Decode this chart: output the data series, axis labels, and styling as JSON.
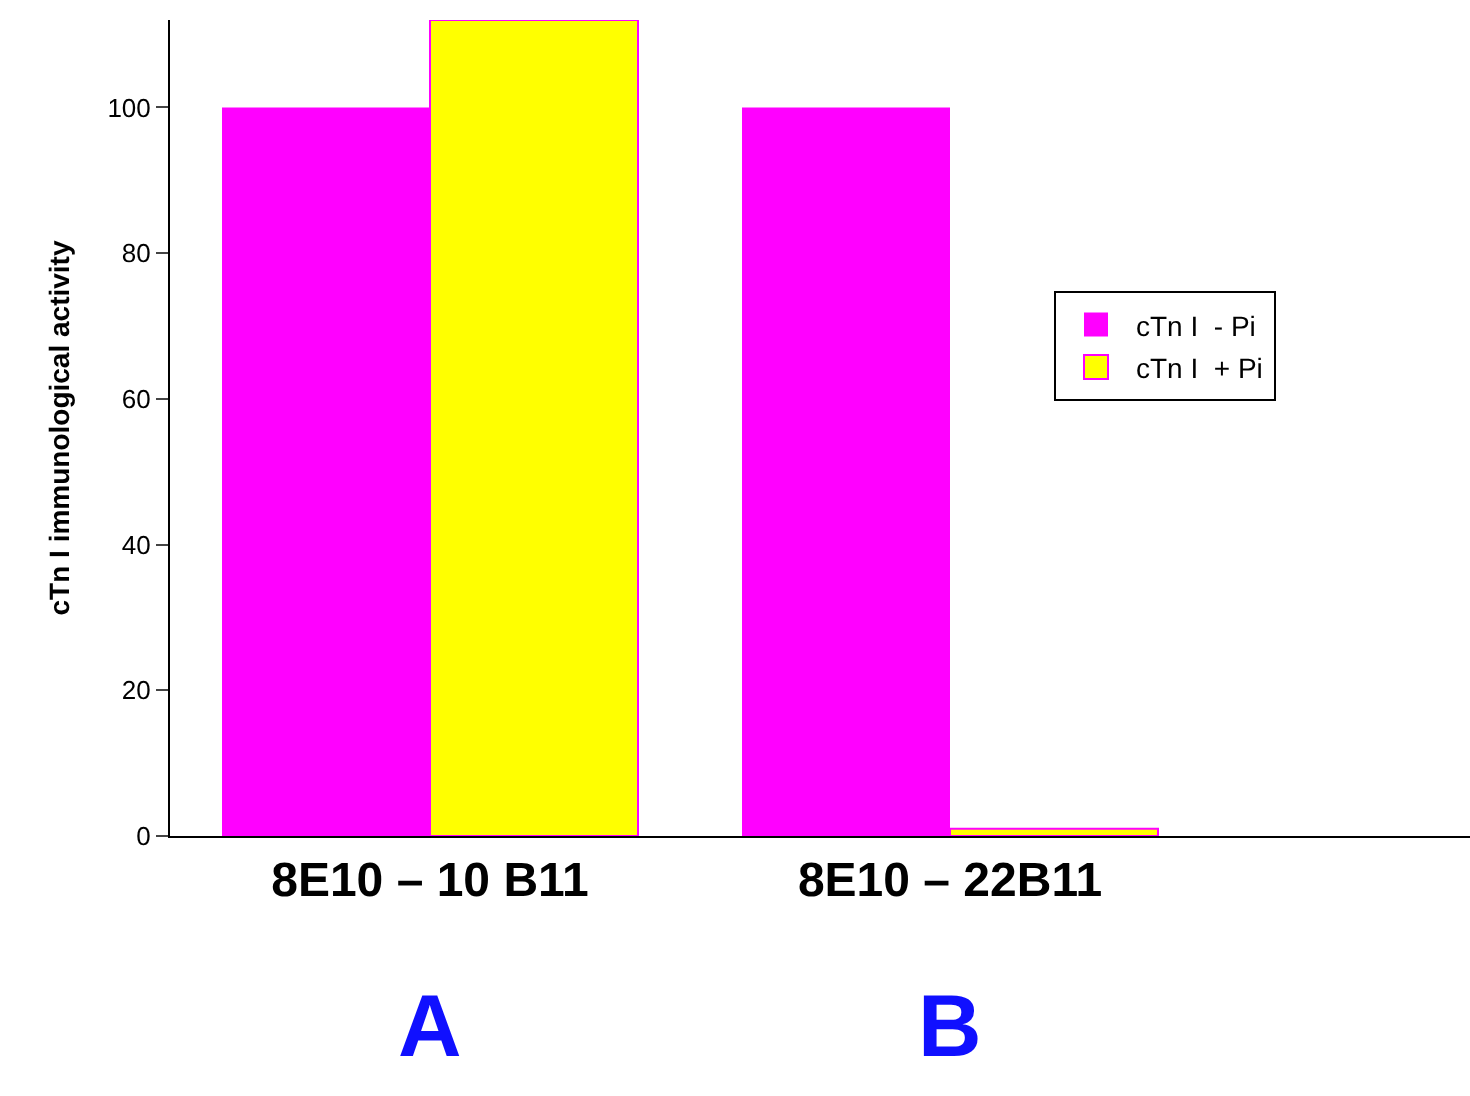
{
  "chart_data": {
    "type": "bar",
    "ylabel": "cTn I immunological activity",
    "categories": [
      "8E10 – 10 B11",
      "8E10 – 22B11"
    ],
    "series": [
      {
        "name": "cTn I  - Pi",
        "color": "#ff00ff",
        "values": [
          100,
          100
        ]
      },
      {
        "name": "cTn I  + Pi",
        "color": "#ffff00",
        "values": [
          112,
          1
        ]
      }
    ],
    "ylim": [
      0,
      112
    ],
    "yticks": [
      0,
      20,
      40,
      60,
      80,
      100
    ],
    "legend": "right",
    "annotations": [
      "A",
      "B"
    ]
  }
}
